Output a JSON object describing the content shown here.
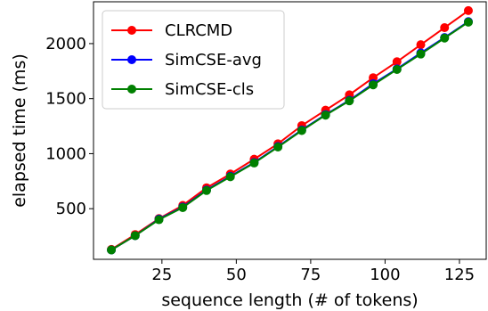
{
  "chart_data": {
    "type": "line",
    "title": "",
    "xlabel": "sequence length (# of tokens)",
    "ylabel": "elapsed time (ms)",
    "x": [
      8,
      16,
      24,
      32,
      40,
      48,
      56,
      64,
      72,
      80,
      88,
      96,
      104,
      112,
      120,
      128
    ],
    "xlim": [
      2,
      134
    ],
    "ylim": [
      40,
      2380
    ],
    "xticks": [
      25,
      50,
      75,
      100,
      125
    ],
    "yticks": [
      500,
      1000,
      1500,
      2000
    ],
    "grid": false,
    "legend_position": "top-left",
    "series": [
      {
        "name": "CLRCMD",
        "color": "#ff0000",
        "values": [
          130,
          265,
          410,
          530,
          690,
          815,
          950,
          1090,
          1255,
          1395,
          1535,
          1690,
          1835,
          1990,
          2145,
          2300
        ]
      },
      {
        "name": "SimCSE-avg",
        "color": "#0000ff",
        "values": [
          125,
          255,
          405,
          515,
          670,
          795,
          920,
          1065,
          1215,
          1355,
          1485,
          1635,
          1770,
          1915,
          2055,
          2200
        ]
      },
      {
        "name": "SimCSE-cls",
        "color": "#008000",
        "values": [
          125,
          255,
          400,
          510,
          665,
          790,
          915,
          1060,
          1210,
          1350,
          1480,
          1625,
          1765,
          1905,
          2050,
          2195
        ]
      }
    ]
  }
}
